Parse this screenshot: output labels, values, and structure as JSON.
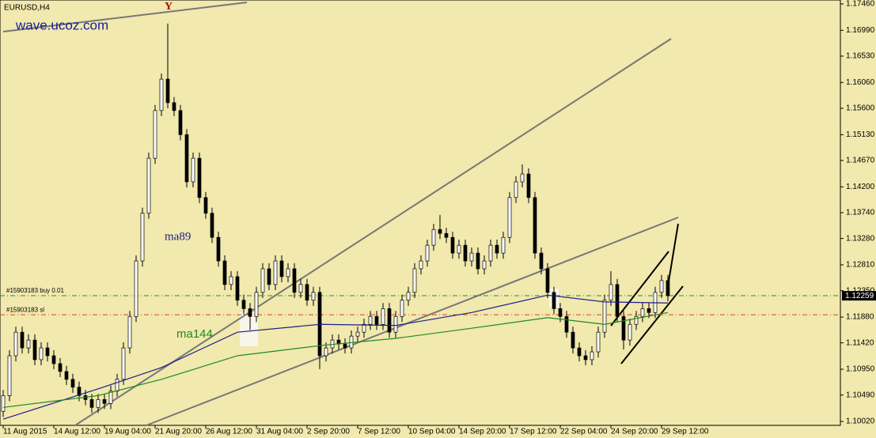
{
  "chart_data": {
    "type": "candlestick",
    "title": "EURUSD,H4",
    "watermark": "wave.ucoz.com",
    "annotation": "Y",
    "background": "#f1e9ad",
    "bull_color": "#ffffff",
    "bear_color": "#000000",
    "xlim": [
      -0.5,
      132.25
    ],
    "ylim": [
      1.0995,
      1.1753
    ],
    "xticks": [
      {
        "value": 0,
        "label": "11 Aug 2015"
      },
      {
        "value": 8,
        "label": "14 Aug 12:00"
      },
      {
        "value": 16,
        "label": "19 Aug 04:00"
      },
      {
        "value": 24,
        "label": "21 Aug 20:00"
      },
      {
        "value": 32,
        "label": "26 Aug 12:00"
      },
      {
        "value": 40,
        "label": "31 Aug 04:00"
      },
      {
        "value": 48,
        "label": "2 Sep 20:00"
      },
      {
        "value": 56,
        "label": "7 Sep 12:00"
      },
      {
        "value": 64,
        "label": "10 Sep 04:00"
      },
      {
        "value": 72,
        "label": "14 Sep 20:00"
      },
      {
        "value": 80,
        "label": "17 Sep 12:00"
      },
      {
        "value": 88,
        "label": "22 Sep 04:00"
      },
      {
        "value": 96,
        "label": "24 Sep 20:00"
      },
      {
        "value": 104,
        "label": "29 Sep 12:00"
      }
    ],
    "yticks": [
      {
        "value": 1.1746,
        "label": "1.17460"
      },
      {
        "value": 1.1699,
        "label": "1.16990"
      },
      {
        "value": 1.1653,
        "label": "1.16530"
      },
      {
        "value": 1.1606,
        "label": "1.16060"
      },
      {
        "value": 1.156,
        "label": "1.15600"
      },
      {
        "value": 1.1513,
        "label": "1.15130"
      },
      {
        "value": 1.1467,
        "label": "1.14670"
      },
      {
        "value": 1.142,
        "label": "1.14200"
      },
      {
        "value": 1.1374,
        "label": "1.13740"
      },
      {
        "value": 1.1328,
        "label": "1.13280"
      },
      {
        "value": 1.1281,
        "label": "1.12810"
      },
      {
        "value": 1.1235,
        "label": "1.12350"
      },
      {
        "value": 1.1188,
        "label": "1.11880"
      },
      {
        "value": 1.1142,
        "label": "1.11420"
      },
      {
        "value": 1.1095,
        "label": "1.10950"
      },
      {
        "value": 1.1049,
        "label": "1.10490"
      },
      {
        "value": 1.1002,
        "label": "1.10020"
      }
    ],
    "open": [
      1.102,
      1.1048,
      1.1119,
      1.1161,
      1.1133,
      1.1147,
      1.1112,
      1.1133,
      1.1119,
      1.1105,
      1.1091,
      1.1077,
      1.1063,
      1.1048,
      1.1041,
      1.1027,
      1.1041,
      1.1034,
      1.1056,
      1.1077,
      1.1133,
      1.1189,
      1.1288,
      1.1373,
      1.1471,
      1.1556,
      1.1612,
      1.157,
      1.1556,
      1.1513,
      1.1429,
      1.1471,
      1.1401,
      1.1373,
      1.133,
      1.1288,
      1.1246,
      1.126,
      1.1218,
      1.1203,
      1.1189,
      1.1232,
      1.1274,
      1.1246,
      1.1288,
      1.126,
      1.1274,
      1.1232,
      1.1246,
      1.1218,
      1.1232,
      1.1119,
      1.1133,
      1.1147,
      1.114,
      1.1133,
      1.1154,
      1.1161,
      1.1175,
      1.1189,
      1.1175,
      1.1203,
      1.1161,
      1.1189,
      1.1218,
      1.1232,
      1.1274,
      1.1288,
      1.1316,
      1.1344,
      1.1337,
      1.133,
      1.1302,
      1.1316,
      1.1288,
      1.1302,
      1.1274,
      1.1288,
      1.1316,
      1.1302,
      1.133,
      1.1401,
      1.1429,
      1.1443,
      1.1401,
      1.1302,
      1.1274,
      1.1232,
      1.1203,
      1.1189,
      1.1161,
      1.1133,
      1.1119,
      1.1112,
      1.1126,
      1.1161,
      1.1218,
      1.1246,
      1.1189,
      1.1147,
      1.1175,
      1.1189,
      1.1203,
      1.1196,
      1.1232,
      1.1253
    ],
    "high": [
      1.1058,
      1.1129,
      1.1171,
      1.1171,
      1.1157,
      1.1157,
      1.1143,
      1.1143,
      1.1129,
      1.1115,
      1.1101,
      1.1087,
      1.1073,
      1.1058,
      1.1051,
      1.1051,
      1.1051,
      1.1066,
      1.1087,
      1.1143,
      1.1199,
      1.1298,
      1.1383,
      1.1481,
      1.1566,
      1.1622,
      1.1711,
      1.158,
      1.1566,
      1.1523,
      1.1481,
      1.1481,
      1.1411,
      1.1383,
      1.134,
      1.1298,
      1.127,
      1.127,
      1.1228,
      1.1213,
      1.1242,
      1.1284,
      1.1284,
      1.1298,
      1.1298,
      1.1284,
      1.1284,
      1.1256,
      1.1256,
      1.1242,
      1.1242,
      1.1143,
      1.1157,
      1.1157,
      1.115,
      1.1164,
      1.1171,
      1.1185,
      1.1199,
      1.1199,
      1.1213,
      1.1213,
      1.1199,
      1.1228,
      1.1242,
      1.1284,
      1.1298,
      1.1326,
      1.1354,
      1.137,
      1.1347,
      1.134,
      1.1326,
      1.1326,
      1.1312,
      1.1312,
      1.1298,
      1.1326,
      1.1326,
      1.134,
      1.1411,
      1.1439,
      1.146,
      1.1453,
      1.1411,
      1.1312,
      1.1284,
      1.1242,
      1.1213,
      1.1199,
      1.1171,
      1.1143,
      1.1129,
      1.1136,
      1.1171,
      1.1228,
      1.127,
      1.1256,
      1.1199,
      1.1185,
      1.1199,
      1.1213,
      1.1213,
      1.1242,
      1.1263,
      1.1263
    ],
    "low": [
      1.101,
      1.1038,
      1.1109,
      1.1123,
      1.1123,
      1.1102,
      1.1102,
      1.1109,
      1.1095,
      1.1081,
      1.1067,
      1.1053,
      1.1038,
      1.1031,
      1.1017,
      1.1017,
      1.1024,
      1.1024,
      1.1046,
      1.1067,
      1.1123,
      1.1179,
      1.1278,
      1.1363,
      1.1461,
      1.1546,
      1.156,
      1.1546,
      1.1503,
      1.1419,
      1.1419,
      1.1391,
      1.1363,
      1.132,
      1.1278,
      1.1236,
      1.1236,
      1.1208,
      1.1193,
      1.1165,
      1.1179,
      1.1222,
      1.1236,
      1.1236,
      1.125,
      1.125,
      1.1222,
      1.1222,
      1.1208,
      1.1208,
      1.1095,
      1.1109,
      1.1123,
      1.113,
      1.1123,
      1.1123,
      1.1144,
      1.1151,
      1.1165,
      1.1165,
      1.1165,
      1.1151,
      1.1151,
      1.1179,
      1.1208,
      1.1222,
      1.1264,
      1.1278,
      1.1306,
      1.1327,
      1.132,
      1.1292,
      1.1292,
      1.1278,
      1.1278,
      1.1264,
      1.1264,
      1.1278,
      1.1292,
      1.1292,
      1.132,
      1.1391,
      1.1419,
      1.1391,
      1.1292,
      1.1264,
      1.1222,
      1.1193,
      1.1179,
      1.1151,
      1.1123,
      1.1109,
      1.1102,
      1.1102,
      1.1116,
      1.1151,
      1.1208,
      1.1179,
      1.113,
      1.1137,
      1.1165,
      1.1179,
      1.1186,
      1.1186,
      1.1222,
      1.1216
    ],
    "close": [
      1.1048,
      1.1119,
      1.1161,
      1.1133,
      1.1147,
      1.1112,
      1.1133,
      1.1119,
      1.1105,
      1.1091,
      1.1077,
      1.1063,
      1.1048,
      1.1041,
      1.1027,
      1.1041,
      1.1034,
      1.1056,
      1.1077,
      1.1133,
      1.1189,
      1.1288,
      1.1373,
      1.1471,
      1.1556,
      1.1612,
      1.157,
      1.1556,
      1.1513,
      1.1429,
      1.1471,
      1.1401,
      1.1373,
      1.133,
      1.1288,
      1.1246,
      1.126,
      1.1218,
      1.1203,
      1.1189,
      1.1232,
      1.1274,
      1.1246,
      1.1288,
      1.126,
      1.1274,
      1.1232,
      1.1246,
      1.1218,
      1.1232,
      1.1119,
      1.1133,
      1.1147,
      1.114,
      1.1133,
      1.1154,
      1.1161,
      1.1175,
      1.1189,
      1.1175,
      1.1203,
      1.1161,
      1.1189,
      1.1218,
      1.1232,
      1.1274,
      1.1288,
      1.1316,
      1.1344,
      1.1337,
      1.133,
      1.1302,
      1.1316,
      1.1288,
      1.1302,
      1.1274,
      1.1288,
      1.1316,
      1.1302,
      1.133,
      1.1401,
      1.1429,
      1.1443,
      1.1401,
      1.1302,
      1.1274,
      1.1232,
      1.1203,
      1.1189,
      1.1161,
      1.1133,
      1.1119,
      1.1112,
      1.1126,
      1.1161,
      1.1218,
      1.1246,
      1.1189,
      1.1147,
      1.1175,
      1.1189,
      1.1203,
      1.1196,
      1.1232,
      1.1253,
      1.1226
    ],
    "lines": [
      {
        "name": "ma89",
        "color": "#1c1c8c",
        "x": [
          0,
          15,
          25,
          37,
          50,
          62,
          74,
          86,
          95,
          105
        ],
        "values": [
          1.1006,
          1.106,
          1.1098,
          1.1161,
          1.1175,
          1.1173,
          1.1196,
          1.1227,
          1.1215,
          1.1213
        ]
      },
      {
        "name": "ma144",
        "color": "#1f8a1f",
        "x": [
          0,
          15,
          25,
          37,
          50,
          62,
          74,
          86,
          95,
          105
        ],
        "values": [
          1.1027,
          1.1048,
          1.1077,
          1.1119,
          1.1137,
          1.115,
          1.1168,
          1.1187,
          1.1175,
          1.1196
        ]
      }
    ],
    "levels": [
      {
        "label": "#15903183 buy 0.01",
        "value": 1.1226,
        "color": "#2e8b2e"
      },
      {
        "label": "#15903183 sl",
        "value": 1.1192,
        "color": "#e0402a"
      }
    ],
    "current_price": {
      "value": 1.12259,
      "label": "1.12259"
    }
  }
}
